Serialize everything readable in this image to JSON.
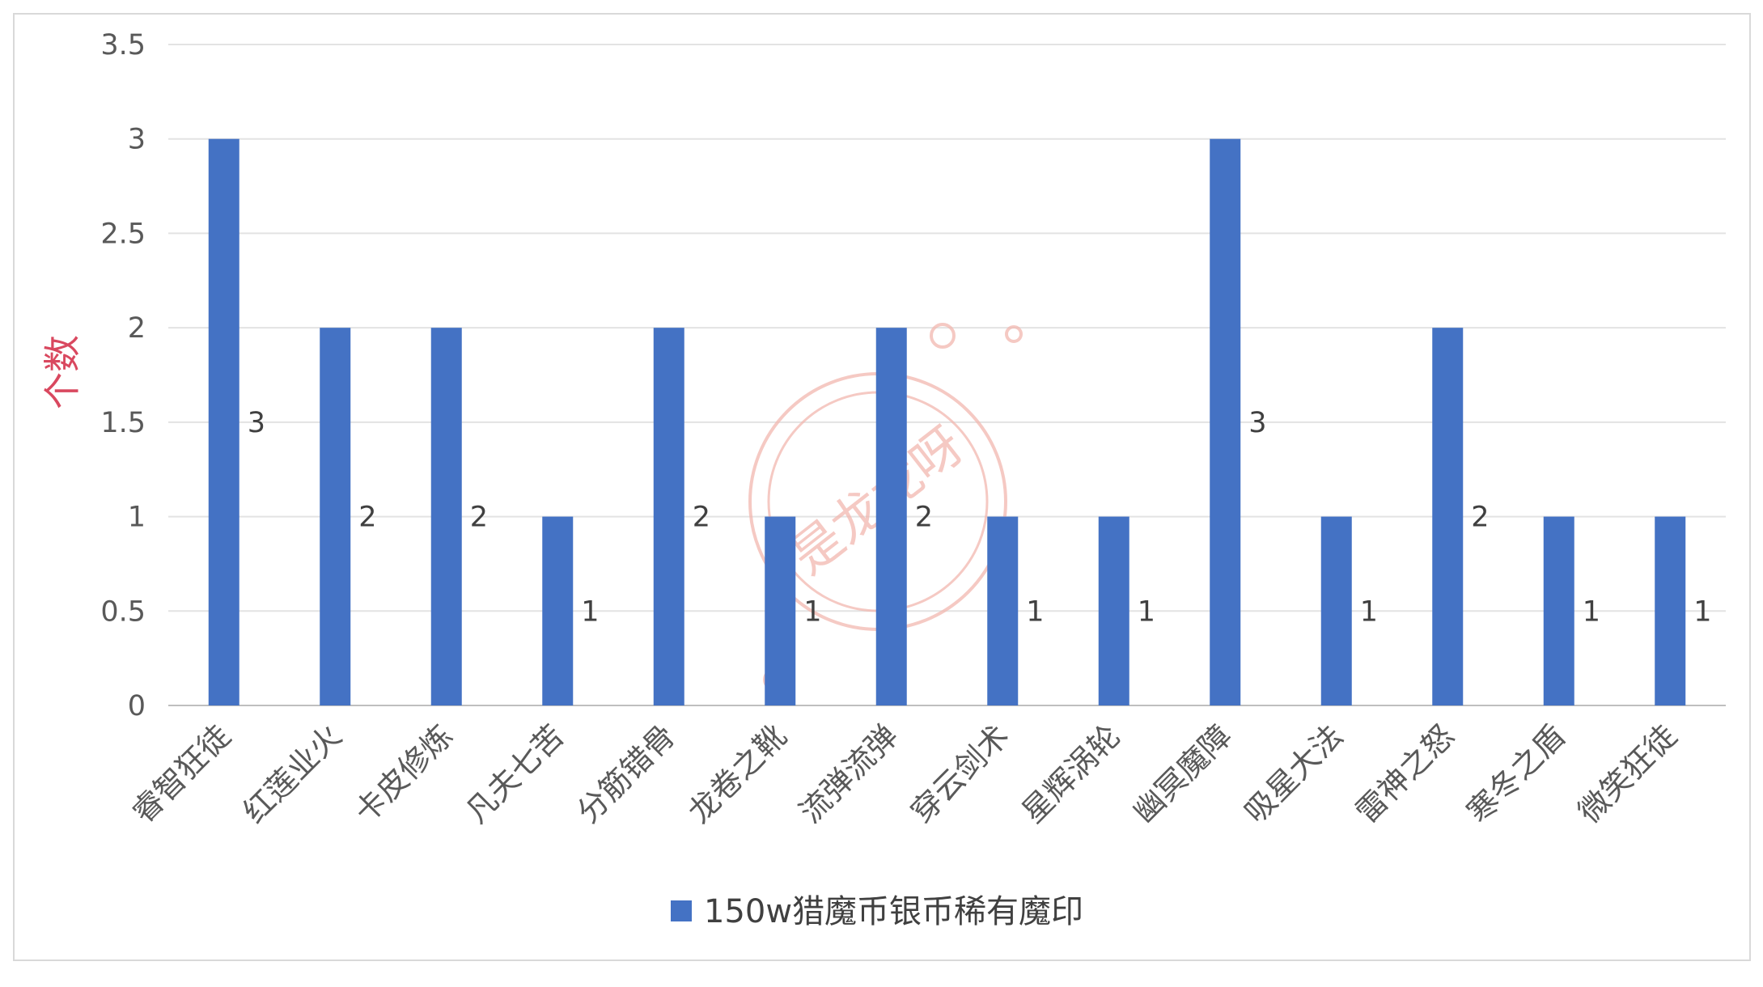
{
  "chart_data": {
    "type": "bar",
    "categories": [
      "睿智狂徒",
      "红莲业火",
      "卡皮修炼",
      "凡夫七苦",
      "分筋错骨",
      "龙卷之靴",
      "流弹流弹",
      "穿云剑术",
      "星辉涡轮",
      "幽冥魔障",
      "吸星大法",
      "雷神之怒",
      "寒冬之盾",
      "微笑狂徒"
    ],
    "series": [
      {
        "name": "150w猎魔币银币稀有魔印",
        "values": [
          3,
          2,
          2,
          1,
          2,
          1,
          2,
          1,
          1,
          3,
          1,
          2,
          1,
          1
        ],
        "color": "#4472c4"
      }
    ],
    "title": "",
    "xlabel": "",
    "ylabel": "个数",
    "ylabel_color": "#d9485f",
    "ylim": [
      0,
      3.5
    ],
    "yticks": [
      "0",
      "0.5",
      "1",
      "1.5",
      "2",
      "2.5",
      "3",
      "3.5"
    ],
    "grid": true,
    "legend_position": "bottom",
    "data_labels": true
  },
  "watermark": {
    "text": "是龙龙呀",
    "color": "#f2b8b0"
  }
}
